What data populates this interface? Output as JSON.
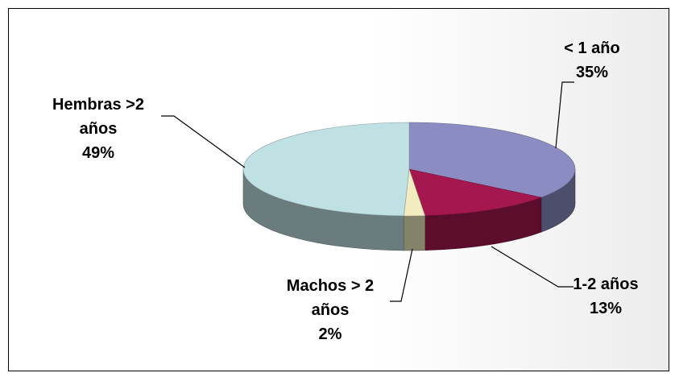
{
  "chart_data": {
    "type": "pie3d",
    "categories": [
      "< 1 año",
      "1-2 años",
      "Machos > 2 años",
      "Hembras >2 años"
    ],
    "values": [
      35,
      13,
      2,
      49
    ],
    "value_labels": [
      "35%",
      "13%",
      "2%",
      "49%"
    ],
    "colors": [
      "#8b8dc2",
      "#a5184f",
      "#f2edc0",
      "#c0e1e3"
    ]
  }
}
